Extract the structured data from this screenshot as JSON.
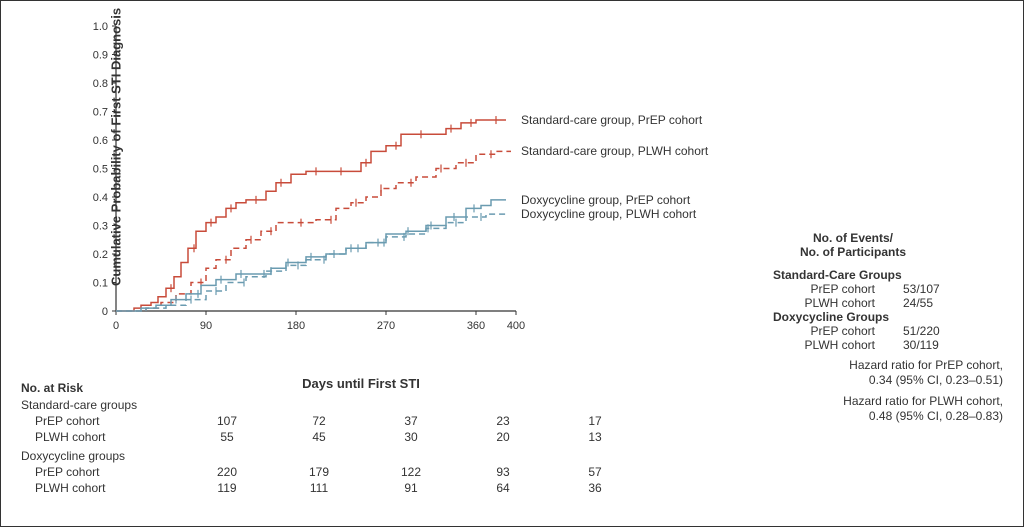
{
  "chart": {
    "type": "kaplan-meier",
    "y_label": "Cumulative Probability of First\nSTI Diagnosis",
    "x_label": "Days until First STI",
    "xlim": [
      0,
      400
    ],
    "ylim": [
      0,
      1.0
    ],
    "xticks": [
      0,
      90,
      180,
      270,
      360,
      400
    ],
    "yticks": [
      0,
      0.1,
      0.2,
      0.3,
      0.4,
      0.5,
      0.6,
      0.7,
      0.8,
      0.9,
      1.0
    ],
    "ytick_labels": [
      "0",
      "0.1",
      "0.2",
      "0.3",
      "0.4",
      "0.5",
      "0.6",
      "0.7",
      "0.8",
      "0.9",
      "1.0"
    ],
    "background_color": "#ffffff",
    "axis_color": "#333333",
    "tick_fontsize": 11,
    "label_fontsize": 13,
    "label_fontweight": "bold",
    "line_width": 1.5,
    "tick_mark_size": 5,
    "series": [
      {
        "name": "Standard-care group, PrEP cohort",
        "color": "#c84b3a",
        "dash": "solid",
        "data": [
          [
            0,
            0
          ],
          [
            18,
            0.01
          ],
          [
            25,
            0.02
          ],
          [
            35,
            0.03
          ],
          [
            42,
            0.05
          ],
          [
            50,
            0.08
          ],
          [
            58,
            0.12
          ],
          [
            65,
            0.17
          ],
          [
            72,
            0.22
          ],
          [
            80,
            0.28
          ],
          [
            90,
            0.31
          ],
          [
            100,
            0.33
          ],
          [
            110,
            0.36
          ],
          [
            120,
            0.38
          ],
          [
            130,
            0.39
          ],
          [
            135,
            0.39
          ],
          [
            150,
            0.42
          ],
          [
            160,
            0.45
          ],
          [
            175,
            0.48
          ],
          [
            190,
            0.49
          ],
          [
            210,
            0.49
          ],
          [
            230,
            0.49
          ],
          [
            245,
            0.52
          ],
          [
            255,
            0.56
          ],
          [
            270,
            0.58
          ],
          [
            285,
            0.62
          ],
          [
            310,
            0.62
          ],
          [
            330,
            0.64
          ],
          [
            345,
            0.66
          ],
          [
            360,
            0.67
          ],
          [
            390,
            0.67
          ]
        ],
        "censor_x": [
          55,
          78,
          95,
          115,
          140,
          165,
          200,
          225,
          250,
          280,
          305,
          335,
          355,
          380
        ]
      },
      {
        "name": "Standard-care group, PLWH cohort",
        "color": "#c84b3a",
        "dash": "dashed",
        "data": [
          [
            0,
            0
          ],
          [
            30,
            0.01
          ],
          [
            45,
            0.03
          ],
          [
            60,
            0.06
          ],
          [
            75,
            0.1
          ],
          [
            90,
            0.15
          ],
          [
            100,
            0.18
          ],
          [
            115,
            0.22
          ],
          [
            130,
            0.25
          ],
          [
            145,
            0.28
          ],
          [
            160,
            0.31
          ],
          [
            180,
            0.31
          ],
          [
            200,
            0.32
          ],
          [
            220,
            0.36
          ],
          [
            235,
            0.38
          ],
          [
            250,
            0.4
          ],
          [
            265,
            0.43
          ],
          [
            280,
            0.45
          ],
          [
            300,
            0.47
          ],
          [
            320,
            0.5
          ],
          [
            340,
            0.52
          ],
          [
            360,
            0.55
          ],
          [
            380,
            0.56
          ],
          [
            395,
            0.56
          ]
        ],
        "censor_x": [
          85,
          110,
          135,
          155,
          185,
          215,
          240,
          265,
          295,
          325,
          350,
          375
        ]
      },
      {
        "name": "Doxycycline group, PrEP cohort",
        "color": "#6a9bb0",
        "dash": "solid",
        "data": [
          [
            0,
            0
          ],
          [
            25,
            0.01
          ],
          [
            40,
            0.02
          ],
          [
            55,
            0.04
          ],
          [
            70,
            0.06
          ],
          [
            85,
            0.09
          ],
          [
            100,
            0.11
          ],
          [
            120,
            0.13
          ],
          [
            140,
            0.13
          ],
          [
            155,
            0.15
          ],
          [
            170,
            0.17
          ],
          [
            190,
            0.19
          ],
          [
            210,
            0.2
          ],
          [
            230,
            0.22
          ],
          [
            250,
            0.24
          ],
          [
            270,
            0.27
          ],
          [
            290,
            0.28
          ],
          [
            310,
            0.3
          ],
          [
            330,
            0.33
          ],
          [
            350,
            0.36
          ],
          [
            365,
            0.37
          ],
          [
            375,
            0.39
          ],
          [
            390,
            0.39
          ]
        ],
        "censor_x": [
          60,
          82,
          105,
          125,
          148,
          172,
          195,
          218,
          242,
          268,
          292,
          315,
          338,
          358
        ]
      },
      {
        "name": "Doxycycline group, PLWH cohort",
        "color": "#6a9bb0",
        "dash": "dashed",
        "data": [
          [
            0,
            0
          ],
          [
            30,
            0.01
          ],
          [
            50,
            0.02
          ],
          [
            70,
            0.04
          ],
          [
            90,
            0.07
          ],
          [
            110,
            0.1
          ],
          [
            130,
            0.12
          ],
          [
            150,
            0.14
          ],
          [
            170,
            0.16
          ],
          [
            190,
            0.18
          ],
          [
            210,
            0.2
          ],
          [
            230,
            0.22
          ],
          [
            250,
            0.24
          ],
          [
            270,
            0.26
          ],
          [
            290,
            0.27
          ],
          [
            310,
            0.29
          ],
          [
            330,
            0.31
          ],
          [
            350,
            0.33
          ],
          [
            370,
            0.34
          ],
          [
            390,
            0.34
          ]
        ],
        "censor_x": [
          75,
          100,
          128,
          155,
          182,
          208,
          235,
          262,
          288,
          312,
          340,
          365
        ]
      }
    ],
    "series_label_positions": [
      {
        "x": 405,
        "y": 0.67
      },
      {
        "x": 405,
        "y": 0.56
      },
      {
        "x": 405,
        "y": 0.39
      },
      {
        "x": 405,
        "y": 0.34
      }
    ]
  },
  "risk_table": {
    "header": "No. at Risk",
    "x_positions": [
      0,
      90,
      180,
      270,
      360
    ],
    "groups": [
      {
        "label": "Standard-care groups",
        "rows": [
          {
            "label": "PrEP cohort",
            "values": [
              107,
              72,
              37,
              23,
              17
            ]
          },
          {
            "label": "PLWH cohort",
            "values": [
              55,
              45,
              30,
              20,
              13
            ]
          }
        ]
      },
      {
        "label": "Doxycycline groups",
        "rows": [
          {
            "label": "PrEP cohort",
            "values": [
              220,
              179,
              122,
              93,
              57
            ]
          },
          {
            "label": "PLWH cohort",
            "values": [
              119,
              111,
              91,
              64,
              36
            ]
          }
        ]
      }
    ]
  },
  "right_panel": {
    "title_line1": "No. of Events/",
    "title_line2": "No. of Participants",
    "sections": [
      {
        "label": "Standard-Care Groups",
        "rows": [
          {
            "label": "PrEP cohort",
            "value": "53/107"
          },
          {
            "label": "PLWH cohort",
            "value": "24/55"
          }
        ]
      },
      {
        "label": "Doxycycline Groups",
        "rows": [
          {
            "label": "PrEP cohort",
            "value": "51/220"
          },
          {
            "label": "PLWH cohort",
            "value": "30/119"
          }
        ]
      }
    ],
    "hazard_ratios": [
      {
        "line1": "Hazard ratio for PrEP cohort,",
        "line2": "0.34 (95% CI, 0.23–0.51)"
      },
      {
        "line1": "Hazard ratio for PLWH cohort,",
        "line2": "0.48 (95% CI, 0.28–0.83)"
      }
    ]
  }
}
